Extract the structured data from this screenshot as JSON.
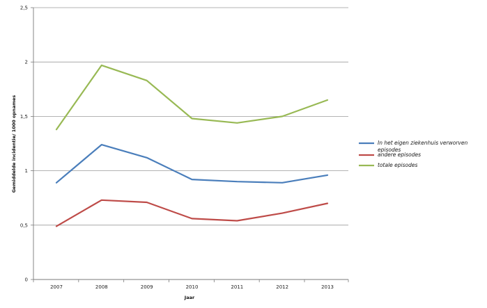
{
  "chart_data": {
    "type": "line",
    "title": "",
    "xlabel": "Jaar",
    "ylabel": "Gemiddelde incidentie/ 1000 opnames",
    "categories": [
      "2007",
      "2008",
      "2009",
      "2010",
      "2011",
      "2012",
      "2013"
    ],
    "ylim": [
      0,
      2.5
    ],
    "yticks": [
      0,
      0.5,
      1,
      1.5,
      2,
      2.5
    ],
    "ytick_labels": [
      "0",
      "0,5",
      "1",
      "1,5",
      "2",
      "2,5"
    ],
    "grid": "horizontal",
    "legend_position": "right",
    "series": [
      {
        "name_lines": [
          "In het eigen ziekenhuis verworven",
          "episodes"
        ],
        "color": "#4a7ebb",
        "values": [
          0.89,
          1.24,
          1.12,
          0.92,
          0.9,
          0.89,
          0.96
        ]
      },
      {
        "name_lines": [
          "andere episodes"
        ],
        "color": "#be4b48",
        "values": [
          0.49,
          0.73,
          0.71,
          0.56,
          0.54,
          0.61,
          0.7
        ]
      },
      {
        "name_lines": [
          "totale episodes"
        ],
        "color": "#98b954",
        "values": [
          1.38,
          1.97,
          1.83,
          1.48,
          1.44,
          1.5,
          1.65
        ]
      }
    ]
  }
}
